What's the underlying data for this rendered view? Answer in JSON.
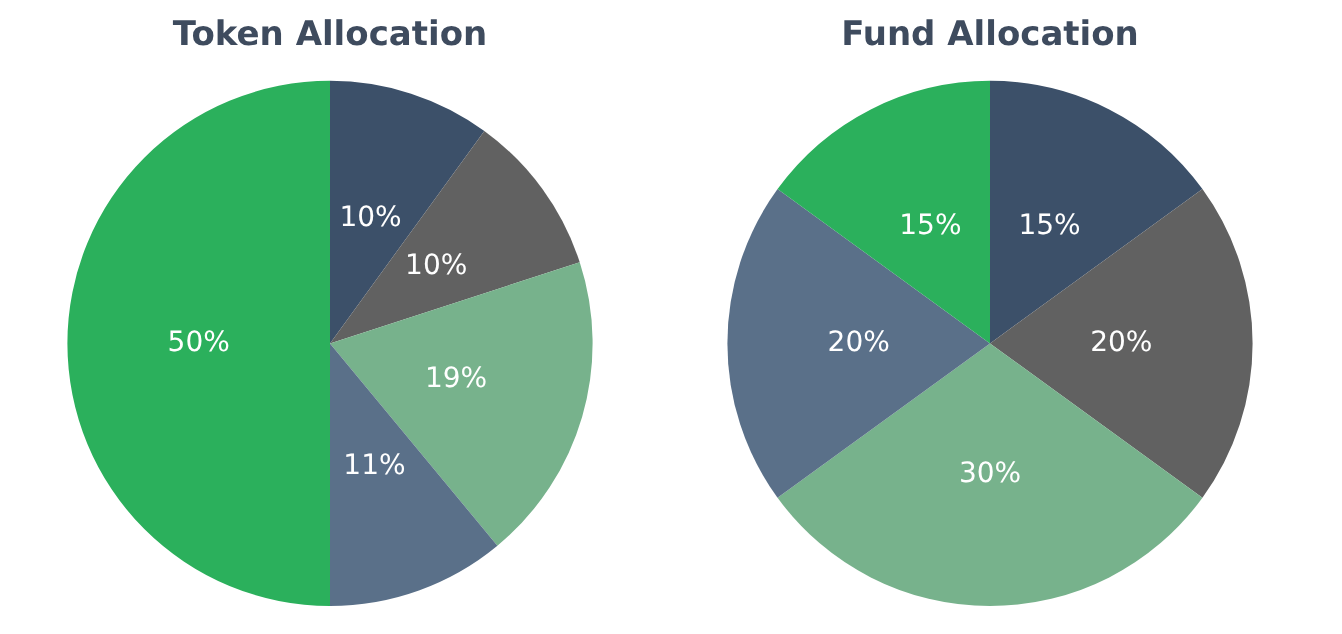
{
  "chart_data": [
    {
      "type": "pie",
      "title": "Token Allocation",
      "categories": [
        null,
        null,
        null,
        null,
        null
      ],
      "values": [
        10,
        10,
        19,
        11,
        50
      ],
      "value_labels": [
        "10%",
        "10%",
        "19%",
        "11%",
        "50%"
      ],
      "colors": [
        "#3c5069",
        "#616161",
        "#77b28c",
        "#5a7089",
        "#2bb05c"
      ]
    },
    {
      "type": "pie",
      "title": "Fund Allocation",
      "categories": [
        null,
        null,
        null,
        null,
        null
      ],
      "values": [
        15,
        20,
        30,
        20,
        15
      ],
      "value_labels": [
        "15%",
        "20%",
        "30%",
        "20%",
        "15%"
      ],
      "colors": [
        "#3c5069",
        "#616161",
        "#77b28c",
        "#5a7089",
        "#2bb05c"
      ]
    }
  ]
}
